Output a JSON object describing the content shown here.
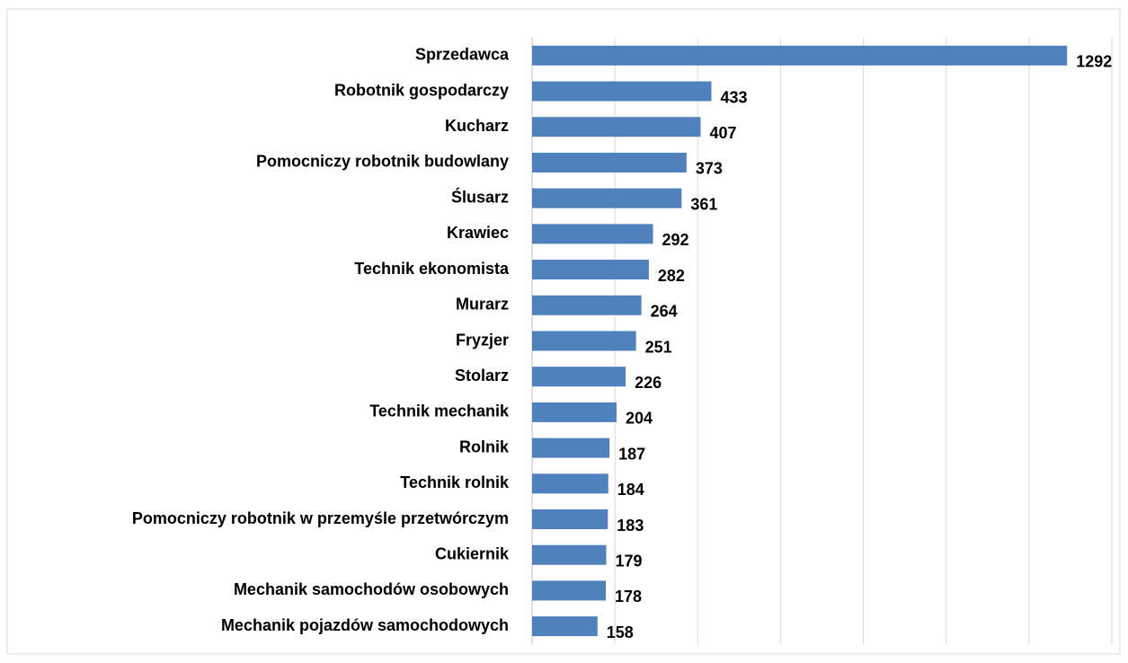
{
  "chart_data": {
    "type": "bar",
    "orientation": "horizontal",
    "categories": [
      "Sprzedawca",
      "Robotnik gospodarczy",
      "Kucharz",
      "Pomocniczy robotnik budowlany",
      "Ślusarz",
      "Krawiec",
      "Technik ekonomista",
      "Murarz",
      "Fryzjer",
      "Stolarz",
      "Technik mechanik",
      "Rolnik",
      "Technik rolnik",
      "Pomocniczy robotnik w przemyśle przetwórczym",
      "Cukiernik",
      "Mechanik samochodów osobowych",
      "Mechanik pojazdów samochodowych"
    ],
    "values": [
      1292,
      433,
      407,
      373,
      361,
      292,
      282,
      264,
      251,
      226,
      204,
      187,
      184,
      183,
      179,
      178,
      158
    ],
    "color": "#4f81bd",
    "xlim": [
      0,
      1400
    ],
    "xticks": [
      0,
      200,
      400,
      600,
      800,
      1000,
      1200,
      1400
    ],
    "grid": true
  }
}
